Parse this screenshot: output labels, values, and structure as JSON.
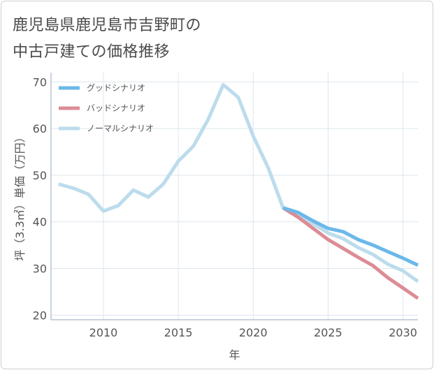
{
  "title": {
    "line1": "鹿児島県鹿児島市吉野町の",
    "line2": "中古戸建ての価格推移"
  },
  "colors": {
    "good": "#6bb8ea",
    "bad": "#dc8c95",
    "normal": "#bcdcec",
    "grid": "#dde6ee",
    "axis": "#a8b8c6"
  },
  "chart_data": {
    "type": "line",
    "xlabel": "年",
    "ylabel": "坪（3.3㎡）単価（万円）",
    "xlim": [
      2006.5,
      2031
    ],
    "ylim": [
      19,
      72
    ],
    "xticks": [
      2010,
      2015,
      2020,
      2025,
      2030
    ],
    "yticks": [
      20,
      30,
      40,
      50,
      60,
      70
    ],
    "legend_position": "top-left",
    "series": [
      {
        "name": "グッドシナリオ",
        "key": "good",
        "points": [
          [
            2022,
            43.0
          ],
          [
            2023,
            42.0
          ],
          [
            2024,
            40.2
          ],
          [
            2025,
            38.6
          ],
          [
            2026,
            37.9
          ],
          [
            2027,
            36.2
          ],
          [
            2028,
            35.0
          ],
          [
            2029,
            33.6
          ],
          [
            2030,
            32.2
          ],
          [
            2031,
            30.7
          ]
        ]
      },
      {
        "name": "バッドシナリオ",
        "key": "bad",
        "points": [
          [
            2022,
            43.0
          ],
          [
            2023,
            41.0
          ],
          [
            2024,
            38.6
          ],
          [
            2025,
            36.2
          ],
          [
            2026,
            34.3
          ],
          [
            2027,
            32.4
          ],
          [
            2028,
            30.6
          ],
          [
            2029,
            28.0
          ],
          [
            2030,
            25.8
          ],
          [
            2031,
            23.6
          ]
        ]
      },
      {
        "name": "ノーマルシナリオ",
        "key": "normal",
        "points": [
          [
            2007,
            48.1
          ],
          [
            2008,
            47.2
          ],
          [
            2009,
            45.9
          ],
          [
            2010,
            42.3
          ],
          [
            2011,
            43.5
          ],
          [
            2012,
            46.8
          ],
          [
            2013,
            45.3
          ],
          [
            2014,
            48.1
          ],
          [
            2015,
            53.0
          ],
          [
            2016,
            56.2
          ],
          [
            2017,
            62.0
          ],
          [
            2018,
            69.4
          ],
          [
            2019,
            66.7
          ],
          [
            2020,
            58.4
          ],
          [
            2021,
            51.6
          ],
          [
            2022,
            43.0
          ],
          [
            2023,
            41.1
          ],
          [
            2024,
            39.6
          ],
          [
            2025,
            37.6
          ],
          [
            2026,
            36.4
          ],
          [
            2027,
            34.5
          ],
          [
            2028,
            33.0
          ],
          [
            2029,
            30.9
          ],
          [
            2030,
            29.5
          ],
          [
            2031,
            27.2
          ]
        ]
      }
    ]
  }
}
